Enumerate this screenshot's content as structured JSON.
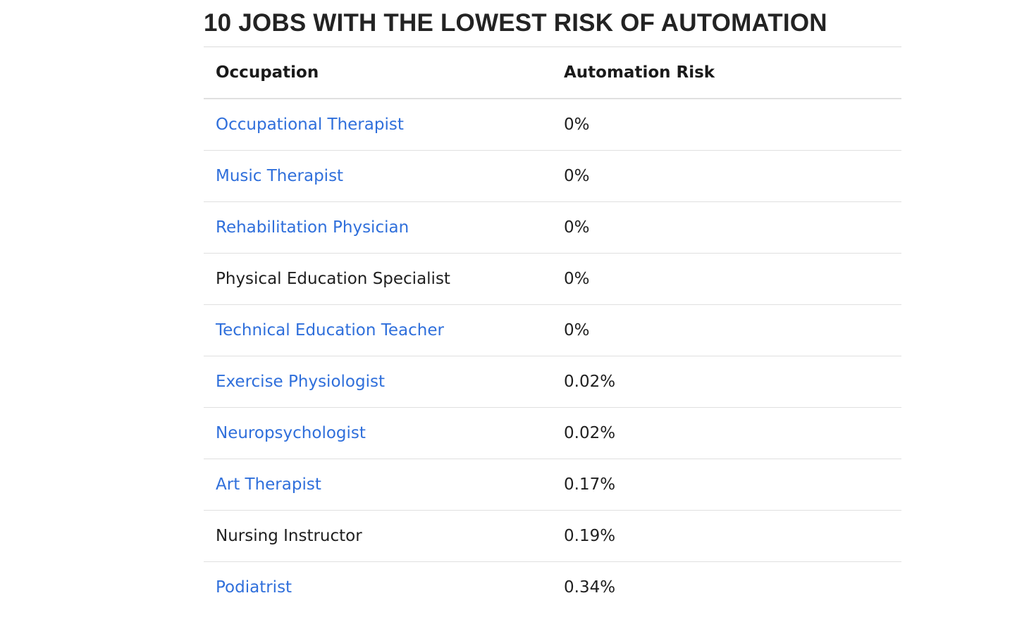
{
  "title": "10 JOBS WITH THE LOWEST RISK OF AUTOMATION",
  "table": {
    "headers": [
      "Occupation",
      "Automation Risk"
    ],
    "rows": [
      {
        "occupation": "Occupational Therapist",
        "risk": "0%",
        "is_link": true
      },
      {
        "occupation": "Music Therapist",
        "risk": "0%",
        "is_link": true
      },
      {
        "occupation": "Rehabilitation Physician",
        "risk": "0%",
        "is_link": true
      },
      {
        "occupation": "Physical Education Specialist",
        "risk": "0%",
        "is_link": false
      },
      {
        "occupation": "Technical Education Teacher",
        "risk": "0%",
        "is_link": true
      },
      {
        "occupation": "Exercise Physiologist",
        "risk": "0.02%",
        "is_link": true
      },
      {
        "occupation": "Neuropsychologist",
        "risk": "0.02%",
        "is_link": true
      },
      {
        "occupation": "Art Therapist",
        "risk": "0.17%",
        "is_link": true
      },
      {
        "occupation": "Nursing Instructor",
        "risk": "0.19%",
        "is_link": false
      },
      {
        "occupation": "Podiatrist",
        "risk": "0.34%",
        "is_link": true
      }
    ]
  },
  "colors": {
    "link": "#2f6fdb",
    "text": "#1f1f1f",
    "divider": "#e0e0e0"
  }
}
